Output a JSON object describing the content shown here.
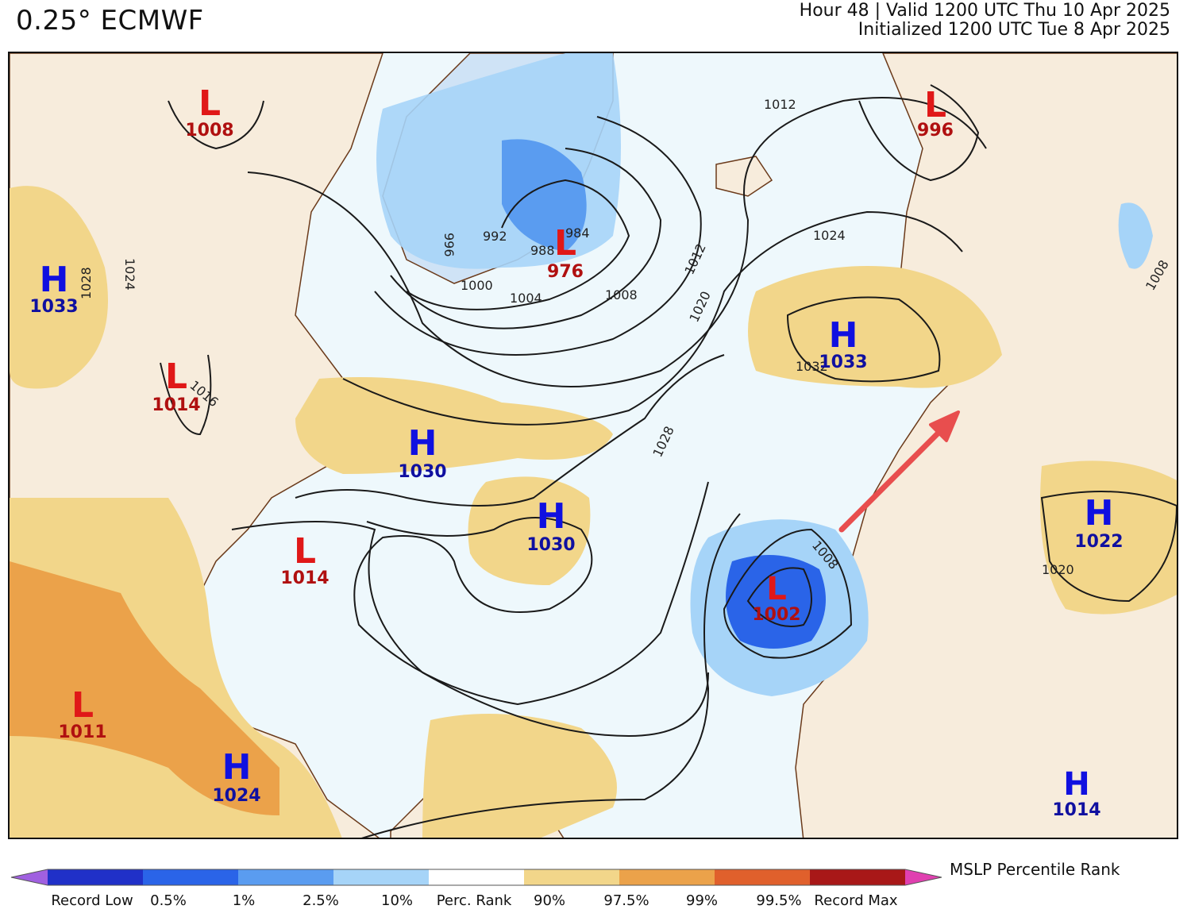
{
  "header": {
    "title": "0.25° ECMWF",
    "valid_line": "Hour 48 | Valid 1200 UTC Thu 10 Apr 2025",
    "init_line": "Initialized 1200 UTC Tue 8 Apr 2025"
  },
  "map": {
    "pressure_systems": [
      {
        "type": "L",
        "value": "1008"
      },
      {
        "type": "H",
        "value": "1033"
      },
      {
        "type": "L",
        "value": "1014"
      },
      {
        "type": "H",
        "value": "1030"
      },
      {
        "type": "H",
        "value": "1030"
      },
      {
        "type": "L",
        "value": "976"
      },
      {
        "type": "L",
        "value": "996"
      },
      {
        "type": "H",
        "value": "1033"
      },
      {
        "type": "L",
        "value": "1014"
      },
      {
        "type": "L",
        "value": "1002"
      },
      {
        "type": "H",
        "value": "1022"
      },
      {
        "type": "L",
        "value": "1011"
      },
      {
        "type": "H",
        "value": "1024"
      },
      {
        "type": "H",
        "value": "1014"
      }
    ],
    "contour_labels": [
      "1012",
      "1024",
      "1012",
      "1020",
      "1028",
      "1008",
      "1004",
      "1000",
      "992",
      "988",
      "984",
      "996",
      "1008",
      "1020",
      "1032",
      "1024",
      "1028",
      "1016",
      "1008"
    ],
    "arrow_color": "#e84e4e"
  },
  "legend": {
    "title": "MSLP Percentile Rank",
    "colors": [
      "#a060e0",
      "#2030c8",
      "#2a64e8",
      "#5a9cf0",
      "#a6d4f8",
      "#ffffff",
      "#f2d68a",
      "#eba24a",
      "#e0602c",
      "#a81818",
      "#e040b0"
    ],
    "labels": [
      "Record Low",
      "0.5%",
      "1%",
      "2.5%",
      "10%",
      "Perc. Rank",
      "90%",
      "97.5%",
      "99%",
      "99.5%",
      "Record Max"
    ]
  }
}
